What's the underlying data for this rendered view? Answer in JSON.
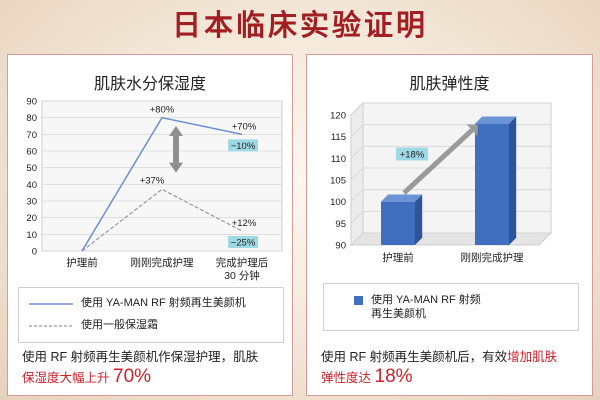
{
  "page": {
    "title": "日本临床实验证明",
    "colors": {
      "title": "#a11f22",
      "accent": "#c8222a",
      "bar": "#3f6fbf",
      "line_blue": "#6b8fd0",
      "line_gray": "#999999",
      "badge": "#9fd9e6"
    }
  },
  "left_panel": {
    "title": "肌肤水分保湿度",
    "legend": {
      "blue": "使用 YA-MAN RF 射频再生美颜机",
      "gray": "使用一般保湿霜"
    },
    "caption": {
      "line1": "使用 RF 射频再生美颜机作保湿护理，肌肤",
      "line2_prefix": "保湿度大幅上升",
      "line2_value": "70%"
    }
  },
  "right_panel": {
    "title": "肌肤弹性度",
    "legend": {
      "bar_line1": "使用 YA-MAN RF 射频",
      "bar_line2": "再生美颜机"
    },
    "caption": {
      "line1_prefix": "使用 RF 射频再生美颜机后，有效",
      "line1_highlight": "增加肌肤",
      "line2_prefix": "弹性度达",
      "line2_value": "18%"
    }
  },
  "chart_data": [
    {
      "type": "line",
      "title": "肌肤水分保湿度",
      "categories": [
        "护理前",
        "刚刚完成护理",
        "完成护理后\n30 分钟"
      ],
      "series": [
        {
          "name": "使用 YA-MAN RF 射频再生美颜机",
          "values": [
            0,
            80,
            70
          ],
          "color": "#6b8fd0",
          "style": "solid"
        },
        {
          "name": "使用一般保湿霜",
          "values": [
            0,
            37,
            12
          ],
          "color": "#999999",
          "style": "dashed"
        }
      ],
      "data_labels": {
        "blue": [
          "",
          "+80%",
          "+70%"
        ],
        "gray": [
          "",
          "+37%",
          "+12%"
        ]
      },
      "badges": [
        "−10%",
        "−25%"
      ],
      "yticks": [
        0,
        10,
        20,
        30,
        40,
        50,
        60,
        70,
        80,
        90
      ],
      "ylim": [
        0,
        90
      ],
      "grid": true
    },
    {
      "type": "bar",
      "title": "肌肤弹性度",
      "categories": [
        "护理前",
        "刚刚完成护理"
      ],
      "series": [
        {
          "name": "使用 YA-MAN RF 射频再生美颜机",
          "values": [
            100,
            118
          ],
          "color": "#3f6fbf"
        }
      ],
      "annotation": "+18%",
      "yticks": [
        90,
        95,
        100,
        105,
        110,
        115,
        120
      ],
      "ylim": [
        90,
        120
      ],
      "grid": true
    }
  ]
}
